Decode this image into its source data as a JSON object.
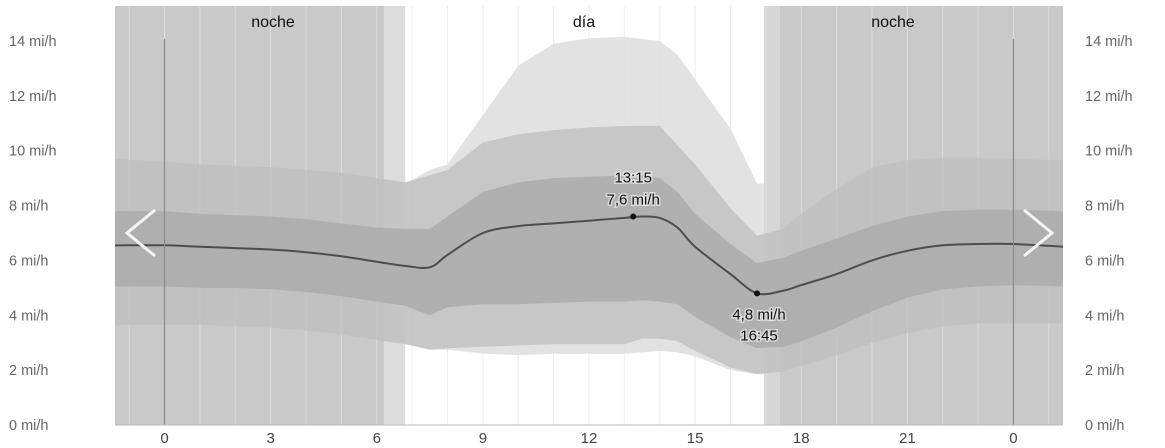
{
  "chart_data": {
    "type": "area",
    "periods": [
      {
        "label": "noche",
        "start": -1.4,
        "end": 6.8
      },
      {
        "label": "día",
        "start": 6.8,
        "end": 16.95
      },
      {
        "label": "noche",
        "start": 16.95,
        "end": 25.4
      }
    ],
    "x_ticks": [
      "0",
      "3",
      "6",
      "9",
      "12",
      "15",
      "18",
      "21",
      "0"
    ],
    "x_tick_values": [
      0,
      3,
      6,
      9,
      12,
      15,
      18,
      21,
      24
    ],
    "xlim": [
      -1.4,
      25.4
    ],
    "y_ticks": [
      "0 mi/h",
      "2 mi/h",
      "4 mi/h",
      "6 mi/h",
      "8 mi/h",
      "10 mi/h",
      "12 mi/h",
      "14 mi/h"
    ],
    "y_tick_values": [
      0,
      2,
      4,
      6,
      8,
      10,
      12,
      14
    ],
    "ylim": [
      0,
      14
    ],
    "unit": "mi/h",
    "grid": true,
    "x": [
      -1.4,
      0,
      1,
      2,
      3,
      4,
      5,
      6,
      6.8,
      7.5,
      8,
      9,
      10,
      11,
      12,
      13,
      13.5,
      14,
      14.5,
      15,
      16,
      16.75,
      17.5,
      18,
      19,
      20,
      21,
      22,
      23,
      24,
      25.4
    ],
    "series": [
      {
        "values": [
          6.55,
          6.55,
          6.5,
          6.45,
          6.4,
          6.3,
          6.15,
          5.95,
          5.8,
          5.75,
          6.2,
          7.0,
          7.25,
          7.35,
          7.45,
          7.55,
          7.6,
          7.55,
          7.2,
          6.5,
          5.5,
          4.8,
          4.9,
          5.1,
          5.5,
          6.0,
          6.35,
          6.55,
          6.6,
          6.6,
          6.5
        ]
      }
    ],
    "bands": [
      {
        "lower": [
          5.05,
          5.05,
          5.0,
          5.0,
          4.95,
          4.85,
          4.7,
          4.5,
          4.35,
          4.0,
          4.3,
          4.4,
          4.4,
          4.45,
          4.5,
          4.5,
          4.55,
          4.5,
          4.4,
          3.95,
          3.2,
          2.8,
          2.85,
          3.05,
          3.55,
          4.15,
          4.65,
          4.95,
          5.05,
          5.1,
          5.05
        ],
        "upper": [
          7.8,
          7.8,
          7.7,
          7.65,
          7.6,
          7.5,
          7.35,
          7.2,
          7.15,
          7.15,
          7.6,
          8.5,
          8.85,
          9.0,
          9.05,
          9.1,
          9.1,
          9.0,
          8.5,
          7.7,
          6.6,
          5.9,
          6.1,
          6.35,
          6.8,
          7.25,
          7.6,
          7.8,
          7.85,
          7.85,
          7.8
        ]
      },
      {
        "lower": [
          3.65,
          3.65,
          3.65,
          3.6,
          3.55,
          3.45,
          3.3,
          3.1,
          2.95,
          2.75,
          2.8,
          2.85,
          2.9,
          2.95,
          2.95,
          2.95,
          3.15,
          3.15,
          3.05,
          2.7,
          2.1,
          1.85,
          1.95,
          2.15,
          2.55,
          3.0,
          3.35,
          3.6,
          3.7,
          3.7,
          3.7
        ],
        "upper": [
          9.7,
          9.6,
          9.5,
          9.45,
          9.4,
          9.3,
          9.2,
          9.0,
          8.85,
          9.1,
          9.3,
          10.3,
          10.6,
          10.75,
          10.85,
          10.9,
          10.9,
          10.9,
          10.2,
          9.5,
          7.9,
          6.9,
          7.15,
          7.7,
          8.6,
          9.4,
          9.65,
          9.75,
          9.75,
          9.7,
          9.65
        ]
      },
      {
        "lower": [
          null
        ],
        "upper": [
          null
        ],
        "day_only": true,
        "x": [
          6.8,
          7.5,
          8,
          9,
          10,
          11,
          12,
          13,
          14,
          14.5,
          15,
          16,
          16.75,
          16.95
        ],
        "lower_vals": [
          2.95,
          2.75,
          2.75,
          2.6,
          2.55,
          2.6,
          2.6,
          2.6,
          2.7,
          2.65,
          2.5,
          2.0,
          1.85,
          1.85
        ],
        "upper_vals": [
          8.8,
          9.3,
          9.5,
          11.3,
          13.1,
          13.9,
          14.1,
          14.15,
          14.0,
          13.5,
          12.6,
          10.8,
          8.8,
          8.8
        ]
      }
    ],
    "annotations": [
      {
        "x": 13.25,
        "y": 7.6,
        "time": "13:15",
        "value": "7,6 mi/h",
        "position": "above"
      },
      {
        "x": 16.75,
        "y": 4.8,
        "time": "16:45",
        "value": "4,8 mi/h",
        "position": "below"
      }
    ],
    "colors": {
      "line": "#4d4d4d",
      "band_inner": "#a8a8a8",
      "band_middle": "#bdbdbd",
      "band_outer": "#dddddd",
      "night": "#c9c9c9",
      "grid": "#e6e6e6"
    }
  },
  "nav": {
    "prev_icon": "chevron-left-icon",
    "next_icon": "chevron-right-icon"
  }
}
